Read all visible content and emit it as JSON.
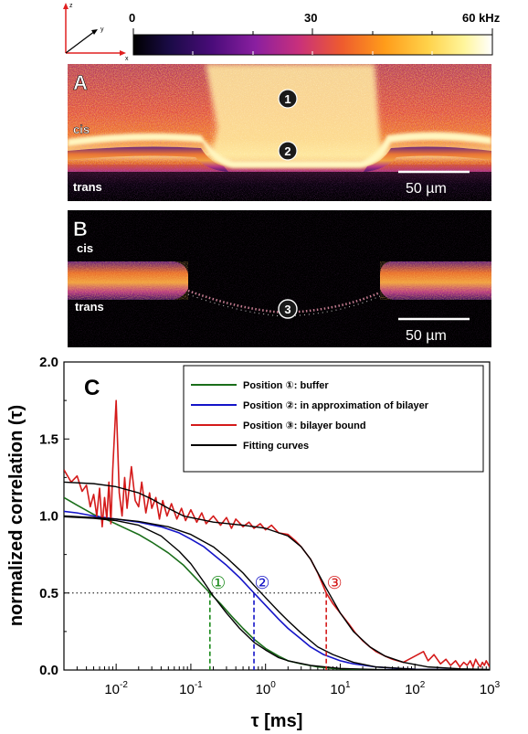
{
  "colorbar": {
    "tick_0": "0",
    "tick_30": "30",
    "tick_60": "60 kHz",
    "range": [
      0,
      60
    ],
    "colors": [
      "#000000",
      "#1a0b46",
      "#4a0c7a",
      "#8a1fa0",
      "#c8307c",
      "#ee5b2e",
      "#ff9c1a",
      "#ffd24a",
      "#fff59a",
      "#ffffff"
    ]
  },
  "axes_icon": {
    "z": "z",
    "y": "y",
    "x": "x"
  },
  "panel_a": {
    "letter": "A",
    "cis": "cis",
    "trans": "trans",
    "marker_1": "1",
    "marker_2": "2",
    "scalebar": "50 µm"
  },
  "panel_b": {
    "letter": "B",
    "cis": "cis",
    "trans": "trans",
    "marker_3": "3",
    "scalebar": "50 µm"
  },
  "chart_data": {
    "type": "line",
    "panel_letter": "C",
    "xlabel": "τ [ms]",
    "ylabel": "normalized correlation (τ)",
    "xscale": "log",
    "xlim": [
      0.002,
      1000
    ],
    "ylim": [
      0,
      2.0
    ],
    "x_ticks": [
      {
        "value": 0.01,
        "base": "10",
        "exp": "-2"
      },
      {
        "value": 0.1,
        "base": "10",
        "exp": "-1"
      },
      {
        "value": 1,
        "base": "10",
        "exp": "0"
      },
      {
        "value": 10,
        "base": "10",
        "exp": "1"
      },
      {
        "value": 100,
        "base": "10",
        "exp": "2"
      },
      {
        "value": 1000,
        "base": "10",
        "exp": "3"
      }
    ],
    "y_ticks": [
      "0.0",
      "0.5",
      "1.0",
      "1.5",
      "2.0"
    ],
    "legend": {
      "placement": "top-right",
      "entries": [
        {
          "label": "Position ①: buffer",
          "color": "#1a6e1a"
        },
        {
          "label": "Position ②: in approximation of bilayer",
          "color": "#1414c8"
        },
        {
          "label": "Position ③: bilayer bound",
          "color": "#d41a1a"
        },
        {
          "label": "Fitting curves",
          "color": "#000000"
        }
      ]
    },
    "half_line": {
      "y": 0.5,
      "x_end": 6.5
    },
    "markers": [
      {
        "label": "①",
        "x": 0.18,
        "color": "#1a8a1a"
      },
      {
        "label": "②",
        "x": 0.7,
        "color": "#1414c8"
      },
      {
        "label": "③",
        "x": 6.5,
        "color": "#d41a1a"
      }
    ],
    "series": [
      {
        "name": "Position ①: buffer",
        "color": "#1a6e1a",
        "points": [
          [
            0.002,
            1.12
          ],
          [
            0.003,
            1.07
          ],
          [
            0.005,
            1.01
          ],
          [
            0.008,
            0.97
          ],
          [
            0.012,
            0.93
          ],
          [
            0.02,
            0.88
          ],
          [
            0.03,
            0.83
          ],
          [
            0.05,
            0.76
          ],
          [
            0.08,
            0.68
          ],
          [
            0.12,
            0.59
          ],
          [
            0.18,
            0.5
          ],
          [
            0.25,
            0.43
          ],
          [
            0.35,
            0.35
          ],
          [
            0.5,
            0.27
          ],
          [
            0.7,
            0.2
          ],
          [
            1,
            0.14
          ],
          [
            1.5,
            0.09
          ],
          [
            2,
            0.06
          ],
          [
            3,
            0.04
          ],
          [
            5,
            0.02
          ],
          [
            8,
            0.01
          ],
          [
            15,
            0.005
          ],
          [
            30,
            0.002
          ],
          [
            100,
            0
          ],
          [
            1000,
            0
          ]
        ]
      },
      {
        "name": "Position ②: in approximation of bilayer",
        "color": "#1414c8",
        "points": [
          [
            0.002,
            1.03
          ],
          [
            0.003,
            1.02
          ],
          [
            0.005,
            1.0
          ],
          [
            0.01,
            0.98
          ],
          [
            0.02,
            0.96
          ],
          [
            0.04,
            0.93
          ],
          [
            0.07,
            0.89
          ],
          [
            0.1,
            0.85
          ],
          [
            0.15,
            0.8
          ],
          [
            0.2,
            0.75
          ],
          [
            0.3,
            0.68
          ],
          [
            0.45,
            0.6
          ],
          [
            0.7,
            0.5
          ],
          [
            1,
            0.42
          ],
          [
            1.5,
            0.33
          ],
          [
            2,
            0.27
          ],
          [
            3,
            0.2
          ],
          [
            4,
            0.15
          ],
          [
            6,
            0.1
          ],
          [
            10,
            0.06
          ],
          [
            15,
            0.04
          ],
          [
            30,
            0.02
          ],
          [
            60,
            0.01
          ],
          [
            100,
            0.005
          ],
          [
            300,
            0.002
          ],
          [
            1000,
            0
          ]
        ]
      },
      {
        "name": "Position ③: bilayer bound",
        "color": "#d41a1a",
        "points": [
          [
            0.002,
            1.3
          ],
          [
            0.0025,
            1.22
          ],
          [
            0.003,
            1.26
          ],
          [
            0.0035,
            1.16
          ],
          [
            0.004,
            1.2
          ],
          [
            0.0045,
            1.06
          ],
          [
            0.005,
            1.14
          ],
          [
            0.0055,
            1.0
          ],
          [
            0.006,
            1.18
          ],
          [
            0.0065,
            0.93
          ],
          [
            0.007,
            1.12
          ],
          [
            0.0075,
            0.98
          ],
          [
            0.008,
            1.22
          ],
          [
            0.0085,
            0.95
          ],
          [
            0.009,
            1.3
          ],
          [
            0.01,
            1.75
          ],
          [
            0.011,
            1.15
          ],
          [
            0.012,
            1.0
          ],
          [
            0.013,
            1.25
          ],
          [
            0.014,
            1.05
          ],
          [
            0.016,
            1.32
          ],
          [
            0.018,
            1.1
          ],
          [
            0.02,
            1.06
          ],
          [
            0.022,
            1.22
          ],
          [
            0.025,
            1.02
          ],
          [
            0.028,
            1.15
          ],
          [
            0.03,
            1.05
          ],
          [
            0.034,
            1.12
          ],
          [
            0.038,
            0.98
          ],
          [
            0.042,
            1.1
          ],
          [
            0.048,
            1.0
          ],
          [
            0.055,
            1.08
          ],
          [
            0.065,
            0.98
          ],
          [
            0.075,
            1.05
          ],
          [
            0.085,
            0.97
          ],
          [
            0.1,
            1.04
          ],
          [
            0.12,
            0.96
          ],
          [
            0.14,
            1.02
          ],
          [
            0.16,
            0.95
          ],
          [
            0.2,
            1.0
          ],
          [
            0.25,
            0.94
          ],
          [
            0.3,
            0.99
          ],
          [
            0.35,
            0.92
          ],
          [
            0.4,
            0.98
          ],
          [
            0.5,
            0.93
          ],
          [
            0.6,
            0.96
          ],
          [
            0.7,
            0.92
          ],
          [
            0.85,
            0.95
          ],
          [
            1,
            0.91
          ],
          [
            1.2,
            0.94
          ],
          [
            1.5,
            0.89
          ],
          [
            2,
            0.88
          ],
          [
            2.5,
            0.84
          ],
          [
            3,
            0.8
          ],
          [
            4,
            0.72
          ],
          [
            5,
            0.63
          ],
          [
            6.5,
            0.5
          ],
          [
            8,
            0.43
          ],
          [
            10,
            0.37
          ],
          [
            13,
            0.3
          ],
          [
            16,
            0.24
          ],
          [
            20,
            0.19
          ],
          [
            25,
            0.15
          ],
          [
            30,
            0.12
          ],
          [
            40,
            0.09
          ],
          [
            50,
            0.07
          ],
          [
            70,
            0.05
          ],
          [
            100,
            0.09
          ],
          [
            130,
            0.12
          ],
          [
            150,
            0.06
          ],
          [
            180,
            0.1
          ],
          [
            220,
            0.04
          ],
          [
            260,
            0.07
          ],
          [
            300,
            0.03
          ],
          [
            350,
            0.06
          ],
          [
            400,
            0.02
          ],
          [
            450,
            0.05
          ],
          [
            500,
            0.03
          ],
          [
            550,
            0.06
          ],
          [
            600,
            0.02
          ],
          [
            650,
            0.07
          ],
          [
            700,
            0.04
          ],
          [
            750,
            0.02
          ],
          [
            800,
            0.05
          ],
          [
            850,
            0.03
          ],
          [
            900,
            0.06
          ],
          [
            1000,
            0.02
          ]
        ]
      },
      {
        "name": "Fitting curves",
        "color": "#000000",
        "points": [
          [
            0.002,
            0.995
          ],
          [
            0.005,
            0.985
          ],
          [
            0.01,
            0.97
          ],
          [
            0.02,
            0.94
          ],
          [
            0.04,
            0.87
          ],
          [
            0.07,
            0.77
          ],
          [
            0.1,
            0.69
          ],
          [
            0.15,
            0.57
          ],
          [
            0.2,
            0.48
          ],
          [
            0.3,
            0.37
          ],
          [
            0.45,
            0.27
          ],
          [
            0.7,
            0.18
          ],
          [
            1,
            0.13
          ],
          [
            1.5,
            0.08
          ],
          [
            2,
            0.06
          ],
          [
            4,
            0.03
          ],
          [
            10,
            0.01
          ],
          [
            30,
            0.003
          ],
          [
            1000,
            0
          ]
        ]
      },
      {
        "name": "Fitting curves",
        "color": "#000000",
        "points": [
          [
            0.002,
            1.0
          ],
          [
            0.005,
            0.99
          ],
          [
            0.01,
            0.98
          ],
          [
            0.02,
            0.965
          ],
          [
            0.05,
            0.93
          ],
          [
            0.1,
            0.88
          ],
          [
            0.2,
            0.8
          ],
          [
            0.3,
            0.73
          ],
          [
            0.5,
            0.63
          ],
          [
            0.7,
            0.55
          ],
          [
            1,
            0.47
          ],
          [
            1.5,
            0.38
          ],
          [
            2,
            0.32
          ],
          [
            3,
            0.24
          ],
          [
            5,
            0.15
          ],
          [
            8,
            0.1
          ],
          [
            15,
            0.05
          ],
          [
            30,
            0.02
          ],
          [
            100,
            0.005
          ],
          [
            1000,
            0
          ]
        ]
      },
      {
        "name": "Fitting curves",
        "color": "#000000",
        "points": [
          [
            0.002,
            1.22
          ],
          [
            0.005,
            1.21
          ],
          [
            0.01,
            1.19
          ],
          [
            0.02,
            1.15
          ],
          [
            0.03,
            1.11
          ],
          [
            0.05,
            1.05
          ],
          [
            0.08,
            1.0
          ],
          [
            0.1,
            0.99
          ],
          [
            0.2,
            0.96
          ],
          [
            0.5,
            0.94
          ],
          [
            1,
            0.92
          ],
          [
            2,
            0.87
          ],
          [
            3,
            0.8
          ],
          [
            4,
            0.72
          ],
          [
            6.5,
            0.53
          ],
          [
            10,
            0.37
          ],
          [
            15,
            0.25
          ],
          [
            25,
            0.15
          ],
          [
            40,
            0.09
          ],
          [
            70,
            0.05
          ],
          [
            150,
            0.02
          ],
          [
            400,
            0.008
          ],
          [
            1000,
            0.003
          ]
        ]
      }
    ]
  }
}
